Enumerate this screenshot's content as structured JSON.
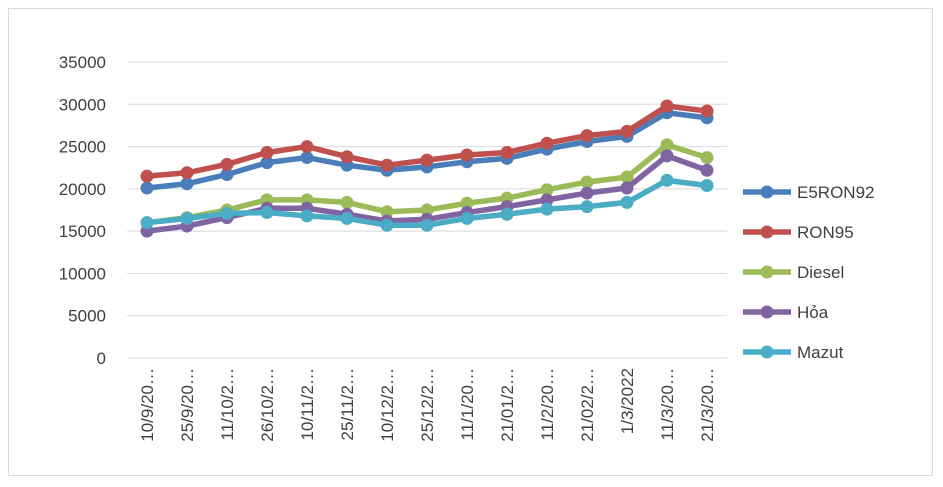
{
  "chart_data": {
    "type": "line",
    "title": "",
    "xlabel": "",
    "ylabel": "",
    "ylim": [
      0,
      35000
    ],
    "yticks": [
      0,
      5000,
      10000,
      15000,
      20000,
      25000,
      30000,
      35000
    ],
    "categories": [
      "10/9/20…",
      "25/9/20…",
      "11/10/2…",
      "26/10/2…",
      "10/11/2…",
      "25/11/2…",
      "10/12/2…",
      "25/12/2…",
      "11/1/20…",
      "21/01/2…",
      "11/2/20…",
      "21/02/2…",
      "1/3/2022",
      "11/3/20…",
      "21/3/20…"
    ],
    "grid": true,
    "legend_position": "right",
    "series": [
      {
        "name": "E5RON92",
        "color": "#4a7ebb",
        "values": [
          20100,
          20600,
          21700,
          23100,
          23700,
          22800,
          22200,
          22600,
          23200,
          23600,
          24700,
          25600,
          26200,
          29000,
          28400
        ]
      },
      {
        "name": "RON95",
        "color": "#c0504d",
        "values": [
          21500,
          21900,
          22900,
          24300,
          25000,
          23800,
          22800,
          23400,
          24000,
          24300,
          25400,
          26300,
          26800,
          29800,
          29200
        ]
      },
      {
        "name": "Diesel",
        "color": "#9bbb59",
        "values": [
          16000,
          16600,
          17500,
          18700,
          18700,
          18400,
          17300,
          17500,
          18300,
          18900,
          19900,
          20800,
          21400,
          25200,
          23700
        ]
      },
      {
        "name": "Hỏa",
        "color": "#8064a2",
        "values": [
          15000,
          15600,
          16600,
          17700,
          17700,
          17000,
          16200,
          16400,
          17200,
          17900,
          18700,
          19500,
          20100,
          23900,
          22200
        ]
      },
      {
        "name": "Mazut",
        "color": "#4bacc6",
        "values": [
          16000,
          16500,
          17100,
          17200,
          16800,
          16500,
          15700,
          15700,
          16500,
          17000,
          17600,
          17900,
          18400,
          21000,
          20400
        ]
      }
    ]
  }
}
